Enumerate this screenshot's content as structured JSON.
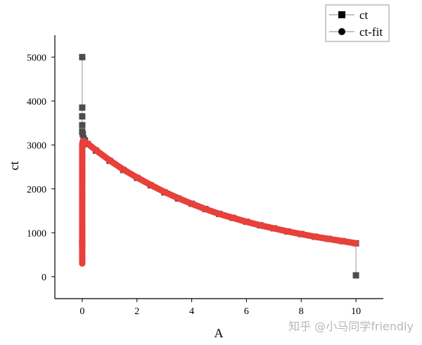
{
  "chart_data": {
    "type": "scatter",
    "xlabel": "A",
    "ylabel": "ct",
    "xlim": [
      -1,
      11
    ],
    "ylim": [
      -500,
      5500
    ],
    "x_ticks": [
      0,
      2,
      4,
      6,
      8,
      10
    ],
    "x_tick_labels": [
      "0",
      "2",
      "4",
      "6",
      "8",
      "10"
    ],
    "y_ticks": [
      0,
      1000,
      2000,
      3000,
      4000,
      5000
    ],
    "y_tick_labels": [
      "0",
      "1000",
      "2000",
      "3000",
      "4000",
      "5000"
    ],
    "grid": false,
    "legend_position": "top-right",
    "series": [
      {
        "name": "ct",
        "marker": "square",
        "color": "#4d4d4d",
        "x": [
          0,
          0,
          0,
          0,
          0,
          0,
          0,
          0.02,
          0.05,
          0.1,
          0.2,
          0.5,
          1.0,
          1.5,
          2.0,
          2.5,
          3.0,
          3.5,
          4.0,
          4.5,
          5.0,
          5.5,
          6.0,
          6.5,
          7.0,
          7.5,
          8.0,
          8.5,
          9.0,
          9.5,
          10.0,
          10.0
        ],
        "values": [
          5000,
          3850,
          3650,
          3450,
          3300,
          800,
          750,
          3250,
          3150,
          3100,
          3020,
          2870,
          2640,
          2430,
          2250,
          2080,
          1920,
          1780,
          1660,
          1540,
          1430,
          1340,
          1250,
          1170,
          1100,
          1030,
          970,
          910,
          860,
          810,
          760,
          30
        ]
      },
      {
        "name": "ct-fit",
        "marker": "circle",
        "color": "#e8403a",
        "x": [
          0,
          0,
          0,
          0,
          0,
          0,
          0,
          0,
          0,
          0.02,
          0.05,
          0.1,
          0.2,
          0.5,
          1.0,
          1.5,
          2.0,
          2.5,
          3.0,
          3.5,
          4.0,
          4.5,
          5.0,
          5.5,
          6.0,
          6.5,
          7.0,
          7.5,
          8.0,
          8.5,
          9.0,
          9.5,
          10.0
        ],
        "values": [
          300,
          1170,
          1770,
          2170,
          2460,
          2660,
          2820,
          2940,
          3020,
          3080,
          3090,
          3070,
          3030,
          2880,
          2650,
          2440,
          2260,
          2090,
          1930,
          1790,
          1660,
          1540,
          1430,
          1340,
          1250,
          1170,
          1100,
          1030,
          970,
          910,
          860,
          810,
          760
        ]
      }
    ]
  },
  "watermark": "知乎 @小马同学friendly"
}
